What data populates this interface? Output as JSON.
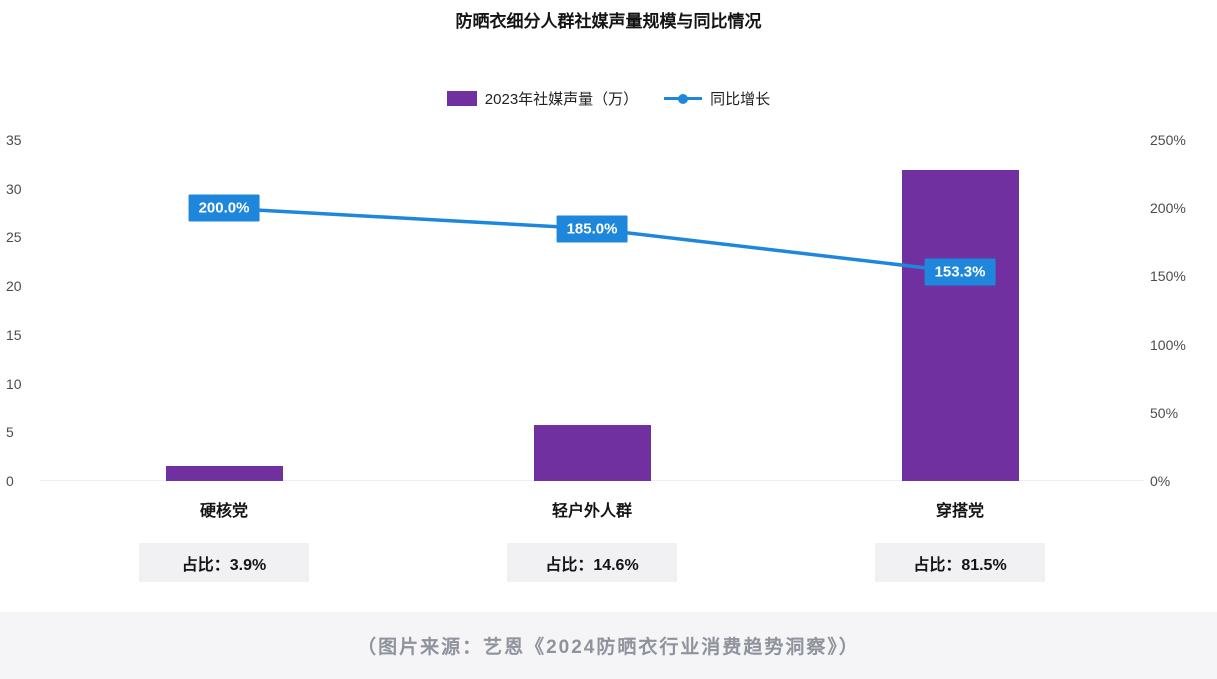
{
  "chart_data": {
    "type": "bar+line",
    "title": "防晒衣细分人群社媒声量规模与同比情况",
    "categories": [
      "硬核党",
      "轻户外人群",
      "穿搭党"
    ],
    "series": [
      {
        "name": "2023年社媒声量（万）",
        "type": "bar",
        "axis": "left",
        "values": [
          1.5,
          5.7,
          31.9
        ],
        "color": "#7030A0"
      },
      {
        "name": "同比增长",
        "type": "line",
        "axis": "right",
        "values": [
          200.0,
          185.0,
          153.3
        ],
        "labels": [
          "200.0%",
          "185.0%",
          "153.3%"
        ],
        "color": "#1E87DC"
      }
    ],
    "left_axis": {
      "min": 0,
      "max": 35,
      "tick_values": [
        0,
        5,
        10,
        15,
        20,
        25,
        30,
        35
      ],
      "tick_labels": [
        "0",
        "5",
        "10",
        "15",
        "20",
        "25",
        "30",
        "35"
      ]
    },
    "right_axis": {
      "min": 0,
      "max": 250,
      "tick_values": [
        0,
        50,
        100,
        150,
        200,
        250
      ],
      "tick_labels": [
        "0%",
        "50%",
        "100%",
        "150%",
        "200%",
        "250%"
      ]
    },
    "share_labels": [
      "占比：3.9%",
      "占比：14.6%",
      "占比：81.5%"
    ],
    "grid": false,
    "legend_position": "top"
  },
  "footer": {
    "caption": "（图片来源：艺恩《2024防晒衣行业消费趋势洞察》）"
  }
}
